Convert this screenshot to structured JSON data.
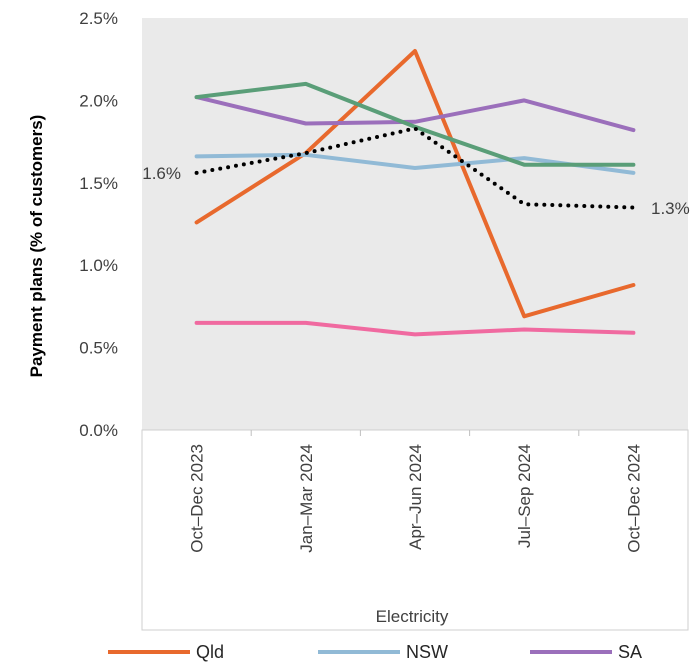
{
  "chart_data": {
    "type": "line",
    "title": "",
    "xlabel": "Electricity",
    "ylabel": "Payment plans  (% of customers)",
    "categories": [
      "Oct–Dec 2023",
      "Jan–Mar 2024",
      "Apr–Jun 2024",
      "Jul–Sep 2024",
      "Oct–Dec 2024"
    ],
    "y_ticks": [
      "0.0%",
      "0.5%",
      "1.0%",
      "1.5%",
      "2.0%",
      "2.5%"
    ],
    "ylim": [
      0,
      2.5
    ],
    "grid": false,
    "legend_position": "bottom",
    "series": [
      {
        "name": "Qld",
        "color": "#e8692d",
        "style": "solid",
        "values": [
          1.26,
          1.68,
          2.3,
          0.69,
          0.88
        ]
      },
      {
        "name": "NSW",
        "color": "#91bad6",
        "style": "solid",
        "values": [
          1.66,
          1.67,
          1.59,
          1.65,
          1.56
        ]
      },
      {
        "name": "SA",
        "color": "#9b6fbb",
        "style": "solid",
        "values": [
          2.02,
          1.86,
          1.87,
          2.0,
          1.82
        ]
      },
      {
        "color": "#5a9e78",
        "style": "solid",
        "values": [
          2.02,
          2.1,
          1.84,
          1.61,
          1.61
        ]
      },
      {
        "color": "#f06aa0",
        "style": "solid",
        "values": [
          0.65,
          0.65,
          0.58,
          0.61,
          0.59
        ]
      },
      {
        "color": "#000000",
        "style": "dotted",
        "values": [
          1.56,
          1.68,
          1.83,
          1.37,
          1.35
        ]
      }
    ],
    "annotations": {
      "start_label": "1.6%",
      "end_label": "1.3%"
    }
  }
}
